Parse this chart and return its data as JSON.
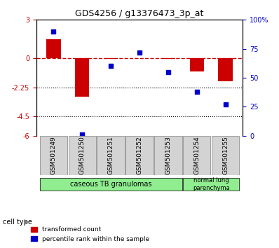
{
  "title": "GDS4256 / g13376473_3p_at",
  "samples": [
    "GSM501249",
    "GSM501250",
    "GSM501251",
    "GSM501252",
    "GSM501253",
    "GSM501254",
    "GSM501255"
  ],
  "red_values": [
    1.5,
    -3.0,
    -0.05,
    0.02,
    -0.05,
    -1.0,
    -1.8
  ],
  "blue_values_pct": [
    90,
    1,
    60,
    72,
    55,
    38,
    27
  ],
  "ylim_left": [
    -6,
    3
  ],
  "ylim_right": [
    0,
    100
  ],
  "yticks_left": [
    3,
    0,
    -2.25,
    -4.5,
    -6
  ],
  "yticks_right": [
    100,
    75,
    50,
    25,
    0
  ],
  "ytick_labels_left": [
    "3",
    "0",
    "-2.25",
    "-4.5",
    "-6"
  ],
  "ytick_labels_right": [
    "100%",
    "75",
    "50",
    "25",
    "0"
  ],
  "hlines": [
    -2.25,
    -4.5
  ],
  "cell_groups": [
    {
      "label": "caseous TB granulomas",
      "indices": [
        0,
        1,
        2,
        3,
        4
      ],
      "color": "#90EE90"
    },
    {
      "label": "normal lung\nparenchyma",
      "indices": [
        5,
        6
      ],
      "color": "#90EE90"
    }
  ],
  "red_color": "#CC0000",
  "blue_color": "#0000CC",
  "dashed_line_color": "#CC0000",
  "bar_width": 0.5,
  "legend_red": "transformed count",
  "legend_blue": "percentile rank within the sample",
  "cell_type_label": "cell type"
}
